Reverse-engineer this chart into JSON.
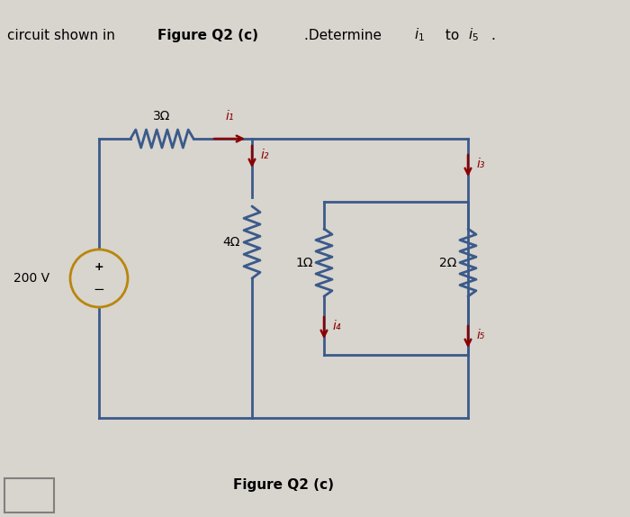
{
  "bg_color": "#d8d4ce",
  "wire_color": "#3a5a8a",
  "resistor_color": "#3a5a8a",
  "current_arrow_color": "#8b0000",
  "source_color": "#cc8800",
  "voltage_source": "200 V",
  "r1_label": "3Ω",
  "r2_label": "4Ω",
  "r3_label": "1Ω",
  "r4_label": "2Ω",
  "i1_label": "i₁",
  "i2_label": "i₂",
  "i3_label": "i₃",
  "i4_label": "i₄",
  "i5_label": "i₅",
  "figure_label": "Figure Q2 (c)"
}
